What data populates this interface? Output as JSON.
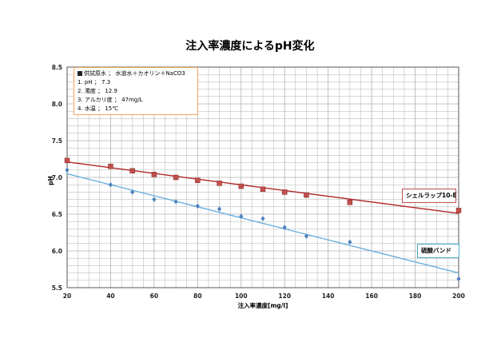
{
  "chart_data": {
    "type": "scatter",
    "title": "注入率濃度によるpH変化",
    "xlabel": "注入率濃度[mg/l]",
    "ylabel": "pH",
    "xlim": [
      20,
      200
    ],
    "ylim": [
      5.5,
      8.5
    ],
    "xticks": [
      "20",
      "40",
      "60",
      "80",
      "100",
      "120",
      "140",
      "160",
      "180",
      "200"
    ],
    "yticks": [
      "5.5",
      "6.0",
      "6.5",
      "7.0",
      "7.5",
      "8.0",
      "8.5"
    ],
    "grid": true,
    "series": [
      {
        "name": "シェルラップ10-E",
        "color": "#c0504d",
        "marker": "square",
        "x": [
          20,
          40,
          50,
          60,
          70,
          80,
          90,
          100,
          110,
          120,
          130,
          150,
          200
        ],
        "y": [
          7.23,
          7.15,
          7.09,
          7.04,
          7.0,
          6.96,
          6.92,
          6.88,
          6.84,
          6.8,
          6.76,
          6.66,
          6.55
        ],
        "trendline": {
          "x": [
            20,
            200
          ],
          "y": [
            7.21,
            6.51
          ]
        }
      },
      {
        "name": "硫酸バンド",
        "color": "#4f81bd",
        "marker": "diamond",
        "x": [
          20,
          40,
          50,
          60,
          70,
          80,
          90,
          100,
          110,
          120,
          130,
          150,
          200
        ],
        "y": [
          7.1,
          6.9,
          6.8,
          6.7,
          6.67,
          6.61,
          6.57,
          6.47,
          6.44,
          6.32,
          6.2,
          6.12,
          5.62
        ],
        "trendline": {
          "x": [
            20,
            200
          ],
          "y": [
            7.05,
            5.7
          ]
        }
      }
    ],
    "annotation": {
      "heading": "供試原水 ； 水道水＋カオリン＋NaCO3",
      "lines": [
        "1. pH ； 7.3",
        "2. 濁度 ； 12.9",
        "3. アルカリ度 ； 47mg/L",
        "4. 水温 ； 15℃"
      ]
    }
  },
  "colors": {
    "trend_red": "#b22222",
    "trend_blue": "#6ab0e0",
    "grid": "#b0b0b0"
  }
}
